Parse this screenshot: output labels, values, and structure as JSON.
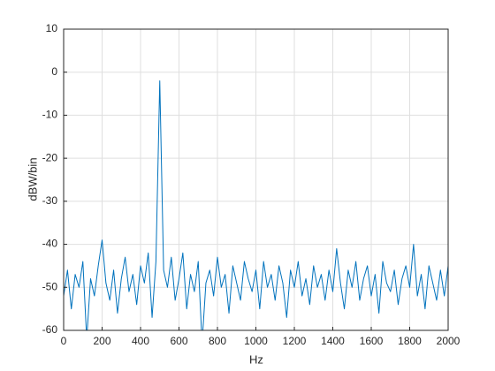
{
  "chart_data": {
    "type": "line",
    "xlabel": "Hz",
    "ylabel": "dBW/bin",
    "x": [
      0,
      20,
      40,
      60,
      80,
      100,
      120,
      140,
      160,
      180,
      200,
      220,
      240,
      260,
      280,
      300,
      320,
      340,
      360,
      380,
      400,
      420,
      440,
      460,
      480,
      500,
      520,
      540,
      560,
      580,
      600,
      620,
      640,
      660,
      680,
      700,
      720,
      740,
      760,
      780,
      800,
      820,
      840,
      860,
      880,
      900,
      920,
      940,
      960,
      980,
      1000,
      1020,
      1040,
      1060,
      1080,
      1100,
      1120,
      1140,
      1160,
      1180,
      1200,
      1220,
      1240,
      1260,
      1280,
      1300,
      1320,
      1340,
      1360,
      1380,
      1400,
      1420,
      1440,
      1460,
      1480,
      1500,
      1520,
      1540,
      1560,
      1580,
      1600,
      1620,
      1640,
      1660,
      1680,
      1700,
      1720,
      1740,
      1760,
      1780,
      1800,
      1820,
      1840,
      1860,
      1880,
      1900,
      1920,
      1940,
      1960,
      1980,
      2000
    ],
    "series": [
      {
        "color": "#0072bd",
        "values": [
          -52,
          -46,
          -55,
          -47,
          -50,
          -44,
          -62,
          -48,
          -52,
          -45,
          -39,
          -49,
          -53,
          -46,
          -56,
          -48,
          -43,
          -51,
          -47,
          -54,
          -45,
          -49,
          -42,
          -57,
          -44,
          -2,
          -46,
          -50,
          -43,
          -53,
          -48,
          -42,
          -55,
          -47,
          -51,
          -44,
          -63,
          -49,
          -46,
          -52,
          -43,
          -50,
          -47,
          -56,
          -45,
          -49,
          -53,
          -44,
          -48,
          -51,
          -46,
          -55,
          -44,
          -50,
          -47,
          -53,
          -45,
          -49,
          -57,
          -46,
          -50,
          -44,
          -52,
          -48,
          -54,
          -45,
          -50,
          -47,
          -53,
          -46,
          -51,
          -41,
          -49,
          -55,
          -46,
          -50,
          -44,
          -53,
          -48,
          -45,
          -52,
          -47,
          -56,
          -44,
          -49,
          -51,
          -46,
          -54,
          -48,
          -45,
          -50,
          -40,
          -52,
          -47,
          -55,
          -45,
          -49,
          -53,
          -46,
          -52,
          -45
        ]
      }
    ],
    "xlim": [
      0,
      2000
    ],
    "xticks": [
      0,
      200,
      400,
      600,
      800,
      1000,
      1200,
      1400,
      1600,
      1800,
      2000
    ],
    "ylim": [
      -60,
      10
    ],
    "yticks": [
      -60,
      -50,
      -40,
      -30,
      -20,
      -10,
      0,
      10
    ],
    "grid": true
  }
}
